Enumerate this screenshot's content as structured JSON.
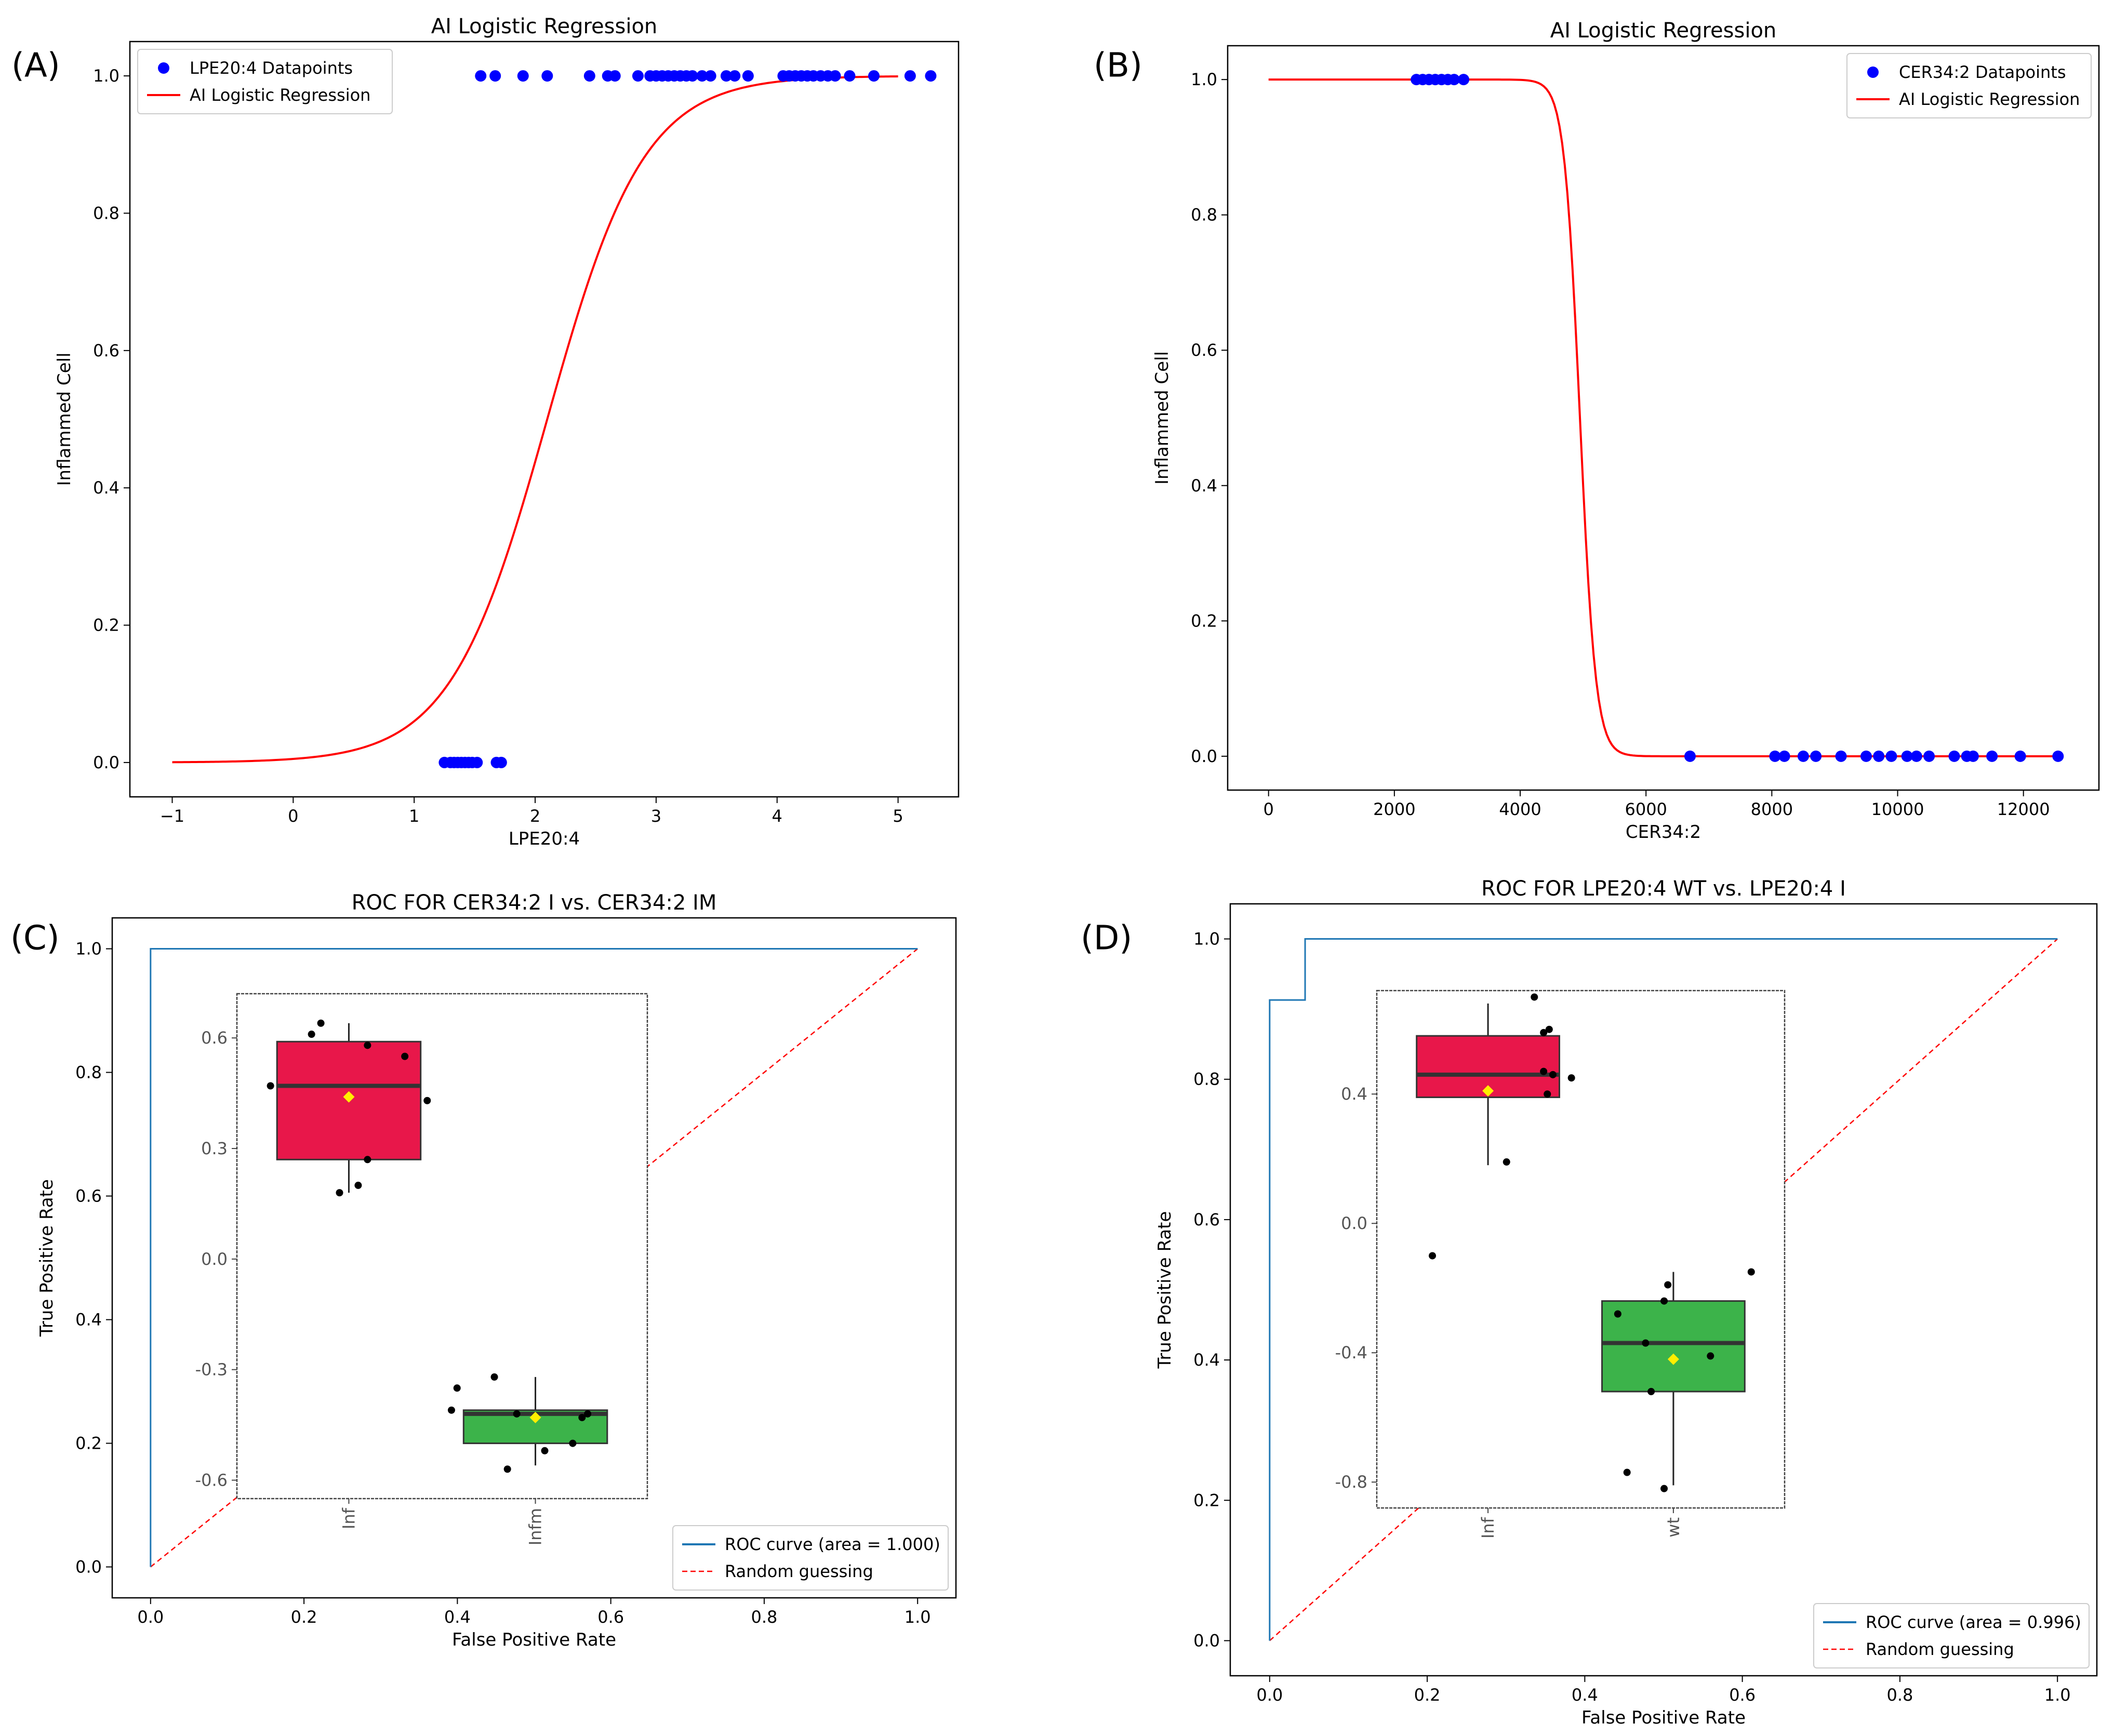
{
  "chart_data": [
    {
      "id": "A",
      "panel_label": "(A)",
      "type": "scatter",
      "title": "AI Logistic Regression",
      "xlabel": "LPE20:4",
      "ylabel": "Inflammed Cell",
      "xlim": [
        -1.35,
        5.5
      ],
      "ylim": [
        -0.05,
        1.05
      ],
      "xticks": [
        -1,
        0,
        1,
        2,
        3,
        4,
        5
      ],
      "xtick_labels": [
        "−1",
        "0",
        "1",
        "2",
        "3",
        "4",
        "5"
      ],
      "yticks": [
        0.0,
        0.2,
        0.4,
        0.6,
        0.8,
        1.0
      ],
      "ytick_labels": [
        "0.0",
        "0.2",
        "0.4",
        "0.6",
        "0.8",
        "1.0"
      ],
      "legend_position": "top-left",
      "series": [
        {
          "name": "LPE20:4 Datapoints",
          "kind": "points",
          "color": "#0000ff",
          "points": [
            [
              1.25,
              0
            ],
            [
              1.3,
              0
            ],
            [
              1.33,
              0
            ],
            [
              1.36,
              0
            ],
            [
              1.39,
              0
            ],
            [
              1.42,
              0
            ],
            [
              1.45,
              0
            ],
            [
              1.48,
              0
            ],
            [
              1.52,
              0
            ],
            [
              1.68,
              0
            ],
            [
              1.72,
              0
            ],
            [
              1.55,
              1
            ],
            [
              1.67,
              1
            ],
            [
              1.9,
              1
            ],
            [
              2.1,
              1
            ],
            [
              2.45,
              1
            ],
            [
              2.6,
              1
            ],
            [
              2.66,
              1
            ],
            [
              2.85,
              1
            ],
            [
              2.95,
              1
            ],
            [
              3.0,
              1
            ],
            [
              3.05,
              1
            ],
            [
              3.1,
              1
            ],
            [
              3.15,
              1
            ],
            [
              3.2,
              1
            ],
            [
              3.25,
              1
            ],
            [
              3.3,
              1
            ],
            [
              3.38,
              1
            ],
            [
              3.45,
              1
            ],
            [
              3.58,
              1
            ],
            [
              3.65,
              1
            ],
            [
              3.76,
              1
            ],
            [
              4.05,
              1
            ],
            [
              4.1,
              1
            ],
            [
              4.15,
              1
            ],
            [
              4.2,
              1
            ],
            [
              4.25,
              1
            ],
            [
              4.3,
              1
            ],
            [
              4.36,
              1
            ],
            [
              4.42,
              1
            ],
            [
              4.48,
              1
            ],
            [
              4.6,
              1
            ],
            [
              4.8,
              1
            ],
            [
              5.1,
              1
            ],
            [
              5.27,
              1
            ]
          ]
        },
        {
          "name": "AI Logistic Regression",
          "kind": "logistic",
          "color": "#ff0000",
          "x_range": [
            -1,
            5
          ],
          "k": 2.5,
          "x0": 2.1
        }
      ]
    },
    {
      "id": "B",
      "panel_label": "(B)",
      "type": "scatter",
      "title": "AI Logistic Regression",
      "xlabel": "CER34:2",
      "ylabel": "Inflammed Cell",
      "xlim": [
        -650,
        13200
      ],
      "ylim": [
        -0.05,
        1.05
      ],
      "xticks": [
        0,
        2000,
        4000,
        6000,
        8000,
        10000,
        12000
      ],
      "xtick_labels": [
        "0",
        "2000",
        "4000",
        "6000",
        "8000",
        "10000",
        "12000"
      ],
      "yticks": [
        0.0,
        0.2,
        0.4,
        0.6,
        0.8,
        1.0
      ],
      "ytick_labels": [
        "0.0",
        "0.2",
        "0.4",
        "0.6",
        "0.8",
        "1.0"
      ],
      "legend_position": "top-right",
      "series": [
        {
          "name": "CER34:2 Datapoints",
          "kind": "points",
          "color": "#0000ff",
          "points": [
            [
              2350,
              1
            ],
            [
              2450,
              1
            ],
            [
              2550,
              1
            ],
            [
              2650,
              1
            ],
            [
              2750,
              1
            ],
            [
              2850,
              1
            ],
            [
              2950,
              1
            ],
            [
              3100,
              1
            ],
            [
              6700,
              0
            ],
            [
              8050,
              0
            ],
            [
              8200,
              0
            ],
            [
              8500,
              0
            ],
            [
              8700,
              0
            ],
            [
              9100,
              0
            ],
            [
              9500,
              0
            ],
            [
              9700,
              0
            ],
            [
              9900,
              0
            ],
            [
              10150,
              0
            ],
            [
              10300,
              0
            ],
            [
              10500,
              0
            ],
            [
              10900,
              0
            ],
            [
              11100,
              0
            ],
            [
              11200,
              0
            ],
            [
              11500,
              0
            ],
            [
              11950,
              0
            ],
            [
              12550,
              0
            ]
          ]
        },
        {
          "name": "AI Logistic Regression",
          "kind": "logistic",
          "color": "#ff0000",
          "x_range": [
            0,
            12500
          ],
          "k": -0.008,
          "x0": 4950
        }
      ]
    },
    {
      "id": "C",
      "panel_label": "(C)",
      "type": "line",
      "title": "ROC FOR CER34:2 I vs. CER34:2 IM",
      "xlabel": "False Positive Rate",
      "ylabel": "True Positive Rate",
      "xlim": [
        -0.05,
        1.05
      ],
      "ylim": [
        -0.05,
        1.05
      ],
      "xticks": [
        0.0,
        0.2,
        0.4,
        0.6,
        0.8,
        1.0
      ],
      "xtick_labels": [
        "0.0",
        "0.2",
        "0.4",
        "0.6",
        "0.8",
        "1.0"
      ],
      "yticks": [
        0.0,
        0.2,
        0.4,
        0.6,
        0.8,
        1.0
      ],
      "ytick_labels": [
        "0.0",
        "0.2",
        "0.4",
        "0.6",
        "0.8",
        "1.0"
      ],
      "legend_position": "bottom-right",
      "roc": {
        "name": "ROC curve (area = 1.000)",
        "color": "#1f77b4",
        "points": [
          [
            0,
            0
          ],
          [
            0,
            1
          ],
          [
            1,
            1
          ]
        ]
      },
      "random": {
        "name": "Random guessing",
        "color": "#ff0000"
      },
      "inset": {
        "type": "box",
        "categories": [
          "Inf",
          "Infm"
        ],
        "ylim": [
          -0.65,
          0.72
        ],
        "yticks": [
          -0.6,
          -0.3,
          0.0,
          0.3,
          0.6
        ],
        "ytick_labels": [
          "-0.6",
          "-0.3",
          "0.0",
          "0.3",
          "0.6"
        ],
        "boxes": [
          {
            "category": "Inf",
            "color": "#e8174a",
            "q1": 0.27,
            "median": 0.47,
            "q3": 0.59,
            "whisker_low": 0.18,
            "whisker_high": 0.64,
            "mean": 0.44,
            "points": [
              [
                0.58,
                0.47
              ],
              [
                0.8,
                0.61
              ],
              [
                0.85,
                0.64
              ],
              [
                1.1,
                0.58
              ],
              [
                0.95,
                0.18
              ],
              [
                1.05,
                0.2
              ],
              [
                1.1,
                0.27
              ],
              [
                1.3,
                0.55
              ],
              [
                1.42,
                0.43
              ]
            ]
          },
          {
            "category": "Infm",
            "color": "#3cb34a",
            "q1": -0.5,
            "median": -0.42,
            "q3": -0.41,
            "whisker_low": -0.56,
            "whisker_high": -0.32,
            "mean": -0.43,
            "points": [
              [
                1.58,
                -0.35
              ],
              [
                1.55,
                -0.41
              ],
              [
                1.78,
                -0.32
              ],
              [
                1.9,
                -0.42
              ],
              [
                1.85,
                -0.57
              ],
              [
                2.05,
                -0.52
              ],
              [
                2.2,
                -0.5
              ],
              [
                2.28,
                -0.42
              ],
              [
                2.25,
                -0.43
              ]
            ]
          }
        ]
      }
    },
    {
      "id": "D",
      "panel_label": "(D)",
      "type": "line",
      "title": "ROC FOR LPE20:4 WT vs. LPE20:4 I",
      "xlabel": "False Positive Rate",
      "ylabel": "True Positive Rate",
      "xlim": [
        -0.05,
        1.05
      ],
      "ylim": [
        -0.05,
        1.05
      ],
      "xticks": [
        0.0,
        0.2,
        0.4,
        0.6,
        0.8,
        1.0
      ],
      "xtick_labels": [
        "0.0",
        "0.2",
        "0.4",
        "0.6",
        "0.8",
        "1.0"
      ],
      "yticks": [
        0.0,
        0.2,
        0.4,
        0.6,
        0.8,
        1.0
      ],
      "ytick_labels": [
        "0.0",
        "0.2",
        "0.4",
        "0.6",
        "0.8",
        "1.0"
      ],
      "legend_position": "bottom-right",
      "roc": {
        "name": "ROC curve (area = 0.996)",
        "color": "#1f77b4",
        "points": [
          [
            0,
            0
          ],
          [
            0,
            0.913
          ],
          [
            0.045,
            0.913
          ],
          [
            0.045,
            1
          ],
          [
            1,
            1
          ]
        ]
      },
      "random": {
        "name": "Random guessing",
        "color": "#ff0000"
      },
      "inset": {
        "type": "box",
        "categories": [
          "Inf",
          "wt"
        ],
        "ylim": [
          -0.88,
          0.72
        ],
        "yticks": [
          -0.8,
          -0.4,
          0.0,
          0.4
        ],
        "ytick_labels": [
          "-0.8",
          "-0.4",
          "0.0",
          "0.4"
        ],
        "boxes": [
          {
            "category": "Inf",
            "color": "#e8174a",
            "q1": 0.39,
            "median": 0.46,
            "q3": 0.58,
            "whisker_low": 0.18,
            "whisker_high": 0.68,
            "mean": 0.41,
            "points": [
              [
                0.7,
                -0.1
              ],
              [
                1.1,
                0.19
              ],
              [
                1.25,
                0.7
              ],
              [
                1.3,
                0.59
              ],
              [
                1.33,
                0.6
              ],
              [
                1.3,
                0.47
              ],
              [
                1.32,
                0.4
              ],
              [
                1.35,
                0.46
              ],
              [
                1.45,
                0.45
              ]
            ]
          },
          {
            "category": "wt",
            "color": "#3cb34a",
            "q1": -0.52,
            "median": -0.37,
            "q3": -0.24,
            "whisker_low": -0.81,
            "whisker_high": -0.15,
            "mean": -0.42,
            "points": [
              [
                1.7,
                -0.28
              ],
              [
                1.75,
                -0.77
              ],
              [
                1.85,
                -0.37
              ],
              [
                1.88,
                -0.52
              ],
              [
                1.95,
                -0.24
              ],
              [
                1.97,
                -0.19
              ],
              [
                1.95,
                -0.82
              ],
              [
                2.2,
                -0.41
              ],
              [
                2.42,
                -0.15
              ]
            ]
          }
        ]
      }
    }
  ]
}
